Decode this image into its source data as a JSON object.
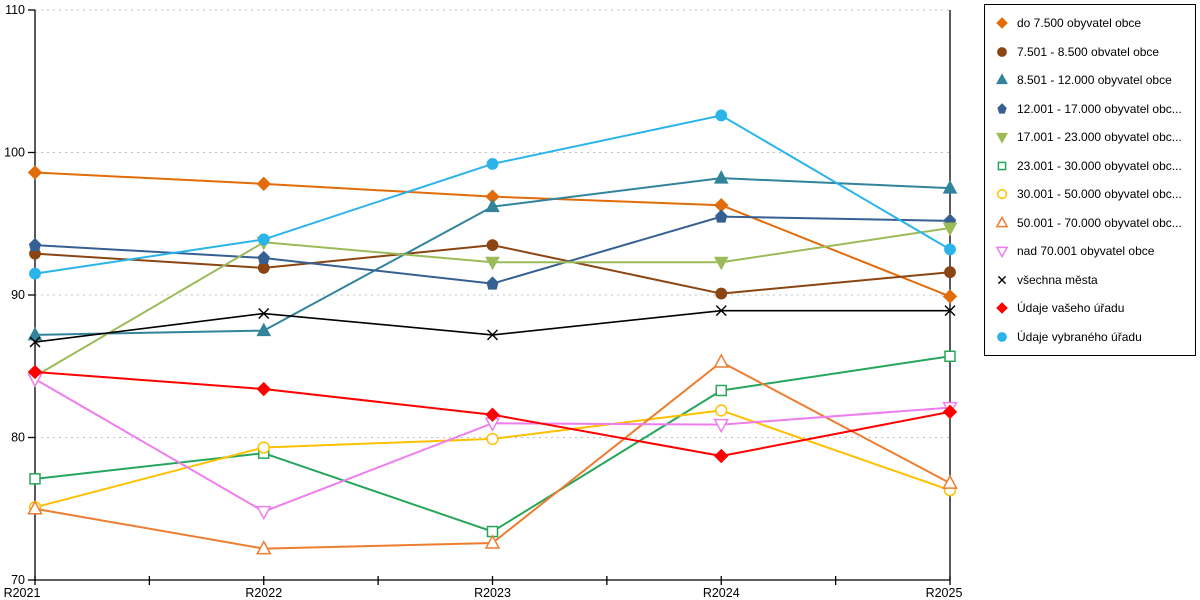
{
  "chart_data": {
    "type": "line",
    "title": "",
    "xlabel": "",
    "ylabel": "",
    "categories": [
      "R2021",
      "R2022",
      "R2023",
      "R2024",
      "R2025"
    ],
    "ylim": [
      70,
      110
    ],
    "yticks": [
      70,
      80,
      90,
      100,
      110
    ],
    "grid": "horizontal dotted",
    "legend_position": "right outside",
    "axis_color": "#000000",
    "gridline_color": "#c0c0c0",
    "series": [
      {
        "id": "do-7500",
        "label": "do 7.500 obyvatel obce",
        "color": "#E36C0A",
        "marker": "diamond",
        "filled": true,
        "values": [
          98.6,
          97.8,
          96.9,
          96.3,
          89.9
        ]
      },
      {
        "id": "7501-8500",
        "label": "7.501 - 8.500 obvatel obce",
        "color": "#8B4513",
        "marker": "circle",
        "filled": true,
        "values": [
          92.9,
          91.9,
          93.5,
          90.1,
          91.6
        ]
      },
      {
        "id": "8501-12000",
        "label": "8.501 - 12.000 obyvatel obce",
        "color": "#31849B",
        "marker": "triangle-up",
        "filled": true,
        "values": [
          87.2,
          87.5,
          96.2,
          98.2,
          97.5
        ]
      },
      {
        "id": "12001-17000",
        "label": "12.001 - 17.000 obyvatel obc...",
        "color": "#376092",
        "marker": "pentagon",
        "filled": true,
        "values": [
          93.5,
          92.6,
          90.8,
          95.5,
          95.2
        ]
      },
      {
        "id": "17001-23000",
        "label": "17.001 - 23.000 obyvatel obc...",
        "color": "#9BBB59",
        "marker": "triangle-down",
        "filled": true,
        "values": [
          84.3,
          93.7,
          92.3,
          92.3,
          94.7
        ]
      },
      {
        "id": "23001-30000",
        "label": "23.001 - 30.000 obyvatel obc...",
        "color": "#26A65B",
        "marker": "square",
        "filled": false,
        "values": [
          77.1,
          78.9,
          73.4,
          83.3,
          85.7
        ]
      },
      {
        "id": "30001-50000",
        "label": "30.001 - 50.000 obyvatel obc...",
        "color": "#FFC000",
        "marker": "circle",
        "filled": false,
        "values": [
          75.1,
          79.3,
          79.9,
          81.9,
          76.3
        ]
      },
      {
        "id": "50001-70000",
        "label": "50.001 - 70.000 obyvatel obc...",
        "color": "#ED7D31",
        "marker": "triangle-up",
        "filled": false,
        "values": [
          75.0,
          72.2,
          72.6,
          85.3,
          76.8
        ]
      },
      {
        "id": "nad-70001",
        "label": "nad 70.001 obyvatel obce",
        "color": "#EE7DEE",
        "marker": "triangle-down",
        "filled": false,
        "values": [
          84.1,
          74.8,
          81.0,
          80.9,
          82.1
        ]
      },
      {
        "id": "vsechna-mesta",
        "label": "všechna města",
        "color": "#000000",
        "marker": "x",
        "filled": false,
        "values": [
          86.7,
          88.7,
          87.2,
          88.9,
          88.9
        ]
      },
      {
        "id": "vas-urad",
        "label": "Údaje vašeho úřadu",
        "color": "#FF0000",
        "marker": "diamond",
        "filled": true,
        "values": [
          84.6,
          83.4,
          81.6,
          78.7,
          81.8
        ]
      },
      {
        "id": "vybrany-urad",
        "label": "Údaje vybraného úřadu",
        "color": "#2AB4EA",
        "marker": "circle",
        "filled": true,
        "values": [
          91.5,
          93.9,
          99.2,
          102.6,
          93.2
        ]
      }
    ]
  }
}
